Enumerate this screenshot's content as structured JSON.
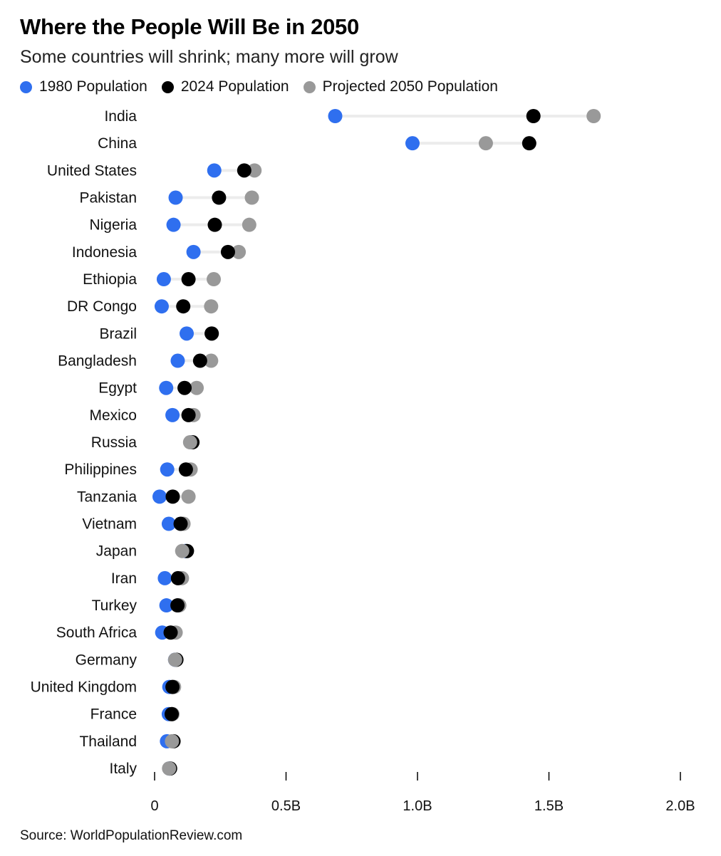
{
  "title": "Where the People Will Be in 2050",
  "subtitle": "Some countries will shrink; many more will grow",
  "legend": [
    {
      "label": "1980 Population",
      "color": "#2f6fef"
    },
    {
      "label": "2024 Population",
      "color": "#000000"
    },
    {
      "label": "Projected 2050 Population",
      "color": "#999999"
    }
  ],
  "source": "Source: WorldPopulationReview.com",
  "chart_data": {
    "type": "dot",
    "xlim": [
      0,
      2.0
    ],
    "x_ticks": [
      {
        "value": 0,
        "label": "0"
      },
      {
        "value": 0.5,
        "label": "0.5B"
      },
      {
        "value": 1.0,
        "label": "1.0B"
      },
      {
        "value": 1.5,
        "label": "1.5B"
      },
      {
        "value": 2.0,
        "label": "2.0B"
      }
    ],
    "unit": "billion people",
    "categories": [
      "India",
      "China",
      "United States",
      "Pakistan",
      "Nigeria",
      "Indonesia",
      "Ethiopia",
      "DR Congo",
      "Brazil",
      "Bangladesh",
      "Egypt",
      "Mexico",
      "Russia",
      "Philippines",
      "Tanzania",
      "Vietnam",
      "Japan",
      "Iran",
      "Turkey",
      "South Africa",
      "Germany",
      "United Kingdom",
      "France",
      "Thailand",
      "Italy"
    ],
    "series": [
      {
        "name": "1980 Population",
        "color": "#2f6fef",
        "values": [
          0.687,
          0.981,
          0.227,
          0.08,
          0.072,
          0.148,
          0.035,
          0.027,
          0.122,
          0.088,
          0.044,
          0.068,
          0.139,
          0.048,
          0.019,
          0.054,
          0.117,
          0.039,
          0.045,
          0.029,
          0.078,
          0.056,
          0.054,
          0.047,
          0.056
        ]
      },
      {
        "name": "2024 Population",
        "color": "#000000",
        "values": [
          1.441,
          1.425,
          0.341,
          0.245,
          0.229,
          0.279,
          0.129,
          0.109,
          0.217,
          0.173,
          0.114,
          0.129,
          0.144,
          0.119,
          0.069,
          0.099,
          0.123,
          0.089,
          0.087,
          0.061,
          0.083,
          0.068,
          0.065,
          0.072,
          0.059
        ]
      },
      {
        "name": "Projected 2050 Population",
        "color": "#999999",
        "values": [
          1.67,
          1.26,
          0.38,
          0.37,
          0.36,
          0.32,
          0.225,
          0.215,
          0.218,
          0.215,
          0.16,
          0.148,
          0.135,
          0.137,
          0.129,
          0.11,
          0.105,
          0.104,
          0.094,
          0.08,
          0.078,
          0.074,
          0.068,
          0.066,
          0.055
        ]
      }
    ]
  }
}
